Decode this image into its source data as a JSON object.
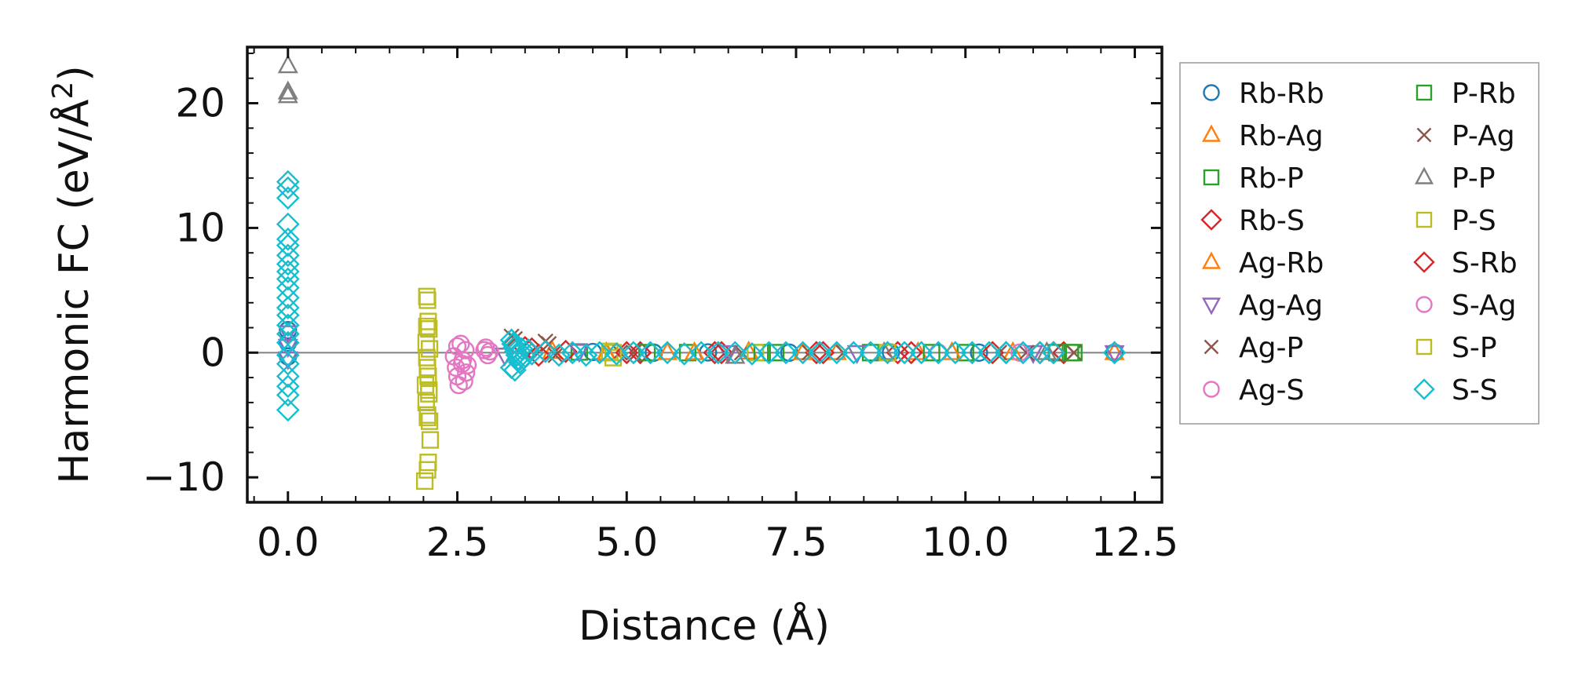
{
  "chart_data": {
    "type": "scatter",
    "xlabel": "Distance (Å)",
    "ylabel_main": "Harmonic FC (eV/Å",
    "ylabel_sup": "2",
    "ylabel_close": ")",
    "xlim": [
      -0.6,
      12.9
    ],
    "ylim": [
      -12.0,
      24.5
    ],
    "x_ticks": [
      0.0,
      2.5,
      5.0,
      7.5,
      10.0,
      12.5
    ],
    "x_tick_labels": [
      "0.0",
      "2.5",
      "5.0",
      "7.5",
      "10.0",
      "12.5"
    ],
    "y_ticks": [
      -10,
      0,
      10,
      20
    ],
    "y_tick_labels": [
      "−10",
      "0",
      "10",
      "20"
    ],
    "zero_line": true,
    "legend_position": "outside-right",
    "series": [
      {
        "name": "Rb-Rb",
        "marker": "circle",
        "color": "#1f77b4",
        "points": [
          [
            0,
            1.8
          ],
          [
            0,
            0.8
          ],
          [
            0,
            -0.3
          ],
          [
            4.5,
            0.05
          ],
          [
            5.4,
            0.0
          ],
          [
            6.2,
            0.02
          ],
          [
            7.4,
            0.0
          ],
          [
            8.9,
            0.01
          ],
          [
            10.2,
            0.0
          ],
          [
            12.2,
            0.0
          ]
        ]
      },
      {
        "name": "Rb-Ag",
        "marker": "triangle-up",
        "color": "#ff7f0e",
        "points": [
          [
            3.9,
            0.1
          ],
          [
            4.7,
            -0.1
          ],
          [
            5.6,
            0.0
          ],
          [
            6.8,
            0.05
          ],
          [
            8.1,
            0.0
          ],
          [
            9.3,
            0.0
          ],
          [
            10.7,
            0.0
          ],
          [
            12.2,
            0.0
          ]
        ]
      },
      {
        "name": "Rb-P",
        "marker": "square",
        "color": "#2ca02c",
        "points": [
          [
            4.3,
            0.05
          ],
          [
            5.9,
            0.0
          ],
          [
            7.2,
            0.0
          ],
          [
            8.6,
            0.0
          ],
          [
            10.0,
            0.0
          ],
          [
            11.35,
            0.0
          ],
          [
            11.6,
            0.0
          ]
        ]
      },
      {
        "name": "Rb-S",
        "marker": "diamond",
        "color": "#d62728",
        "points": [
          [
            3.5,
            0.4
          ],
          [
            3.7,
            -0.2
          ],
          [
            4.1,
            0.1
          ],
          [
            5.2,
            0.0
          ],
          [
            6.4,
            0.0
          ],
          [
            7.8,
            0.0
          ],
          [
            9.0,
            0.0
          ],
          [
            10.4,
            0.0
          ],
          [
            11.1,
            0.0
          ],
          [
            11.45,
            0.0
          ]
        ]
      },
      {
        "name": "Ag-Rb",
        "marker": "triangle-up",
        "color": "#ff7f0e",
        "points": [
          [
            4.7,
            0.0
          ],
          [
            6.0,
            0.0
          ],
          [
            7.6,
            0.0
          ],
          [
            9.8,
            0.0
          ]
        ]
      },
      {
        "name": "Ag-Ag",
        "marker": "triangle-down",
        "color": "#9467bd",
        "points": [
          [
            0,
            0.5
          ],
          [
            0,
            1.6
          ],
          [
            0,
            -0.5
          ],
          [
            3.2,
            -0.2
          ],
          [
            4.3,
            0.1
          ],
          [
            6.5,
            0.0
          ],
          [
            8.4,
            0.0
          ],
          [
            11.0,
            0.0
          ],
          [
            12.2,
            0.0
          ]
        ]
      },
      {
        "name": "Ag-P",
        "marker": "x",
        "color": "#8c564b",
        "points": [
          [
            3.3,
            1.3
          ],
          [
            3.8,
            0.9
          ],
          [
            3.95,
            -0.2
          ],
          [
            4.9,
            0.0
          ],
          [
            6.7,
            0.0
          ],
          [
            8.2,
            0.0
          ],
          [
            10.5,
            0.0
          ],
          [
            11.6,
            0.0
          ]
        ]
      },
      {
        "name": "Ag-S",
        "marker": "circle",
        "color": "#e377c2",
        "points": [
          [
            2.45,
            -0.3
          ],
          [
            2.48,
            -1.2
          ],
          [
            2.5,
            -1.9
          ],
          [
            2.52,
            -2.6
          ],
          [
            2.55,
            0.7
          ],
          [
            2.58,
            -0.6
          ],
          [
            2.6,
            -2.3
          ],
          [
            2.62,
            0.2
          ],
          [
            2.65,
            -1.0
          ],
          [
            2.92,
            0.4
          ],
          [
            2.95,
            -0.2
          ],
          [
            2.98,
            0.1
          ],
          [
            9.6,
            0.0
          ]
        ]
      },
      {
        "name": "P-Rb",
        "marker": "square",
        "color": "#2ca02c",
        "points": [
          [
            5.3,
            0.0
          ],
          [
            7.0,
            0.0
          ],
          [
            9.5,
            0.0
          ],
          [
            11.55,
            0.0
          ]
        ]
      },
      {
        "name": "P-Ag",
        "marker": "x",
        "color": "#8c564b",
        "points": [
          [
            3.35,
            1.1
          ],
          [
            3.85,
            0.7
          ],
          [
            5.1,
            0.0
          ],
          [
            7.7,
            0.0
          ],
          [
            10.9,
            0.0
          ]
        ]
      },
      {
        "name": "P-P",
        "marker": "triangle-up",
        "color": "#7f7f7f",
        "points": [
          [
            0,
            23.0
          ],
          [
            0,
            20.9
          ],
          [
            0,
            20.6
          ],
          [
            6.6,
            -0.3
          ],
          [
            8.8,
            0.0
          ],
          [
            11.2,
            0.0
          ]
        ]
      },
      {
        "name": "P-S",
        "marker": "square",
        "color": "#bcbd22",
        "points": [
          [
            2.05,
            4.5
          ],
          [
            2.06,
            4.2
          ],
          [
            2.07,
            2.5
          ],
          [
            2.08,
            1.9
          ],
          [
            2.04,
            0.8
          ],
          [
            2.09,
            0.3
          ],
          [
            2.05,
            -0.4
          ],
          [
            2.06,
            -1.2
          ],
          [
            2.07,
            -1.9
          ],
          [
            2.03,
            -2.6
          ],
          [
            2.08,
            -3.3
          ],
          [
            2.04,
            -4.0
          ],
          [
            2.06,
            -5.0
          ],
          [
            2.09,
            -5.5
          ],
          [
            2.1,
            -7.0
          ],
          [
            2.07,
            -8.8
          ],
          [
            2.06,
            -9.4
          ],
          [
            2.02,
            -10.3
          ],
          [
            4.8,
            -0.4
          ],
          [
            4.75,
            0.1
          ],
          [
            6.9,
            0.0
          ],
          [
            8.85,
            0.0
          ]
        ]
      },
      {
        "name": "S-Rb",
        "marker": "diamond",
        "color": "#d62728",
        "points": [
          [
            3.6,
            0.3
          ],
          [
            5.0,
            0.0
          ],
          [
            6.3,
            0.0
          ],
          [
            7.9,
            0.0
          ],
          [
            9.2,
            0.0
          ],
          [
            10.6,
            0.0
          ],
          [
            11.3,
            0.0
          ]
        ]
      },
      {
        "name": "S-Ag",
        "marker": "circle",
        "color": "#e377c2",
        "points": [
          [
            2.5,
            0.5
          ],
          [
            2.57,
            -0.9
          ],
          [
            2.63,
            -1.6
          ],
          [
            2.9,
            0.2
          ],
          [
            10.8,
            0.0
          ]
        ]
      },
      {
        "name": "S-P",
        "marker": "square",
        "color": "#bcbd22",
        "points": [
          [
            2.05,
            2.1
          ],
          [
            2.08,
            -3.0
          ],
          [
            2.06,
            -5.2
          ],
          [
            4.8,
            0.0
          ]
        ]
      },
      {
        "name": "S-S",
        "marker": "diamond",
        "color": "#17becf",
        "points": [
          [
            0,
            13.7
          ],
          [
            0,
            13.2
          ],
          [
            0,
            12.4
          ],
          [
            0,
            10.3
          ],
          [
            0,
            9.1
          ],
          [
            0,
            8.6
          ],
          [
            0,
            7.8
          ],
          [
            0,
            7.1
          ],
          [
            0,
            6.5
          ],
          [
            0,
            5.9
          ],
          [
            0,
            5.2
          ],
          [
            0,
            4.4
          ],
          [
            0,
            3.6
          ],
          [
            0,
            3.0
          ],
          [
            0,
            2.2
          ],
          [
            0,
            1.5
          ],
          [
            0,
            0.8
          ],
          [
            0,
            -0.2
          ],
          [
            0,
            -0.9
          ],
          [
            0,
            -1.9
          ],
          [
            0,
            -2.7
          ],
          [
            0,
            -3.4
          ],
          [
            0,
            -4.6
          ],
          [
            3.3,
            1.0
          ],
          [
            3.32,
            0.7
          ],
          [
            3.34,
            0.4
          ],
          [
            3.36,
            0.1
          ],
          [
            3.38,
            -0.2
          ],
          [
            3.4,
            -0.5
          ],
          [
            3.42,
            -0.8
          ],
          [
            3.3,
            -1.2
          ],
          [
            3.35,
            -1.4
          ],
          [
            3.45,
            0.3
          ],
          [
            3.5,
            -0.3
          ],
          [
            3.55,
            0.2
          ],
          [
            3.6,
            -0.1
          ],
          [
            3.8,
            0.1
          ],
          [
            4.0,
            -0.2
          ],
          [
            4.2,
            0.0
          ],
          [
            4.4,
            -0.2
          ],
          [
            4.6,
            0.0
          ],
          [
            4.85,
            -0.1
          ],
          [
            5.1,
            0.0
          ],
          [
            5.35,
            0.0
          ],
          [
            5.6,
            0.0
          ],
          [
            5.85,
            -0.1
          ],
          [
            6.1,
            0.0
          ],
          [
            6.35,
            0.0
          ],
          [
            6.6,
            0.0
          ],
          [
            6.85,
            -0.1
          ],
          [
            7.1,
            0.0
          ],
          [
            7.35,
            0.0
          ],
          [
            7.6,
            0.0
          ],
          [
            7.85,
            0.0
          ],
          [
            8.1,
            0.0
          ],
          [
            8.35,
            0.0
          ],
          [
            8.6,
            0.0
          ],
          [
            8.85,
            0.0
          ],
          [
            9.1,
            0.0
          ],
          [
            9.35,
            0.0
          ],
          [
            9.6,
            0.0
          ],
          [
            9.85,
            0.0
          ],
          [
            10.1,
            0.0
          ],
          [
            10.35,
            0.0
          ],
          [
            10.6,
            0.0
          ],
          [
            10.85,
            0.0
          ],
          [
            11.1,
            0.0
          ],
          [
            11.3,
            0.0
          ],
          [
            12.2,
            0.0
          ]
        ]
      }
    ]
  }
}
